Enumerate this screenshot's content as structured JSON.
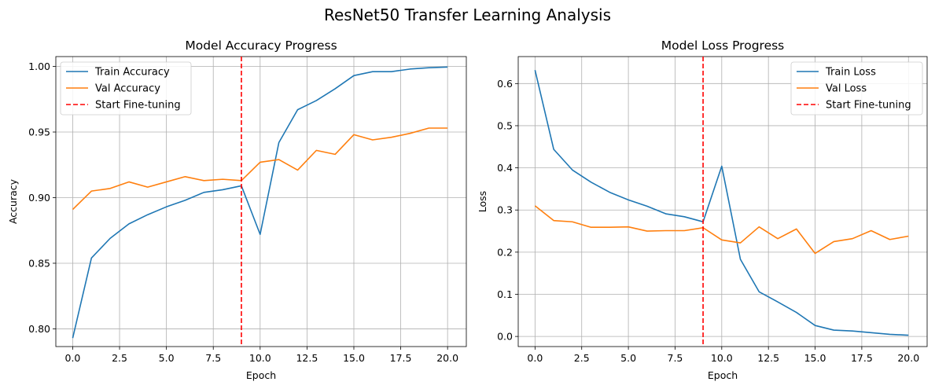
{
  "figure": {
    "title": "ResNet50 Transfer Learning Analysis"
  },
  "colors": {
    "train": "#1f77b4",
    "val": "#ff7f0e",
    "finetune": "#ff0000",
    "grid": "#b0b0b0"
  },
  "chart_data": [
    {
      "type": "line",
      "title": "Model Accuracy Progress",
      "xlabel": "Epoch",
      "ylabel": "Accuracy",
      "xlim": [
        -0.9,
        21.0
      ],
      "ylim": [
        0.7865,
        1.0075
      ],
      "xticks": [
        0.0,
        2.5,
        5.0,
        7.5,
        10.0,
        12.5,
        15.0,
        17.5,
        20.0
      ],
      "xtick_labels": [
        "0.0",
        "2.5",
        "5.0",
        "7.5",
        "10.0",
        "12.5",
        "15.0",
        "17.5",
        "20.0"
      ],
      "yticks": [
        0.8,
        0.85,
        0.9,
        0.95,
        1.0
      ],
      "ytick_labels": [
        "0.80",
        "0.85",
        "0.90",
        "0.95",
        "1.00"
      ],
      "grid": true,
      "legend_position": "top-left",
      "x": [
        0,
        1,
        2,
        3,
        4,
        5,
        6,
        7,
        8,
        9,
        10,
        11,
        12,
        13,
        14,
        15,
        16,
        17,
        18,
        19,
        20
      ],
      "series": [
        {
          "name": "Train Accuracy",
          "color_key": "train",
          "values": [
            0.793,
            0.854,
            0.869,
            0.88,
            0.887,
            0.893,
            0.898,
            0.904,
            0.906,
            0.909,
            0.872,
            0.942,
            0.967,
            0.974,
            0.983,
            0.993,
            0.996,
            0.996,
            0.998,
            0.999,
            0.9995
          ]
        },
        {
          "name": "Val Accuracy",
          "color_key": "val",
          "values": [
            0.891,
            0.905,
            0.907,
            0.912,
            0.908,
            0.912,
            0.916,
            0.913,
            0.914,
            0.913,
            0.927,
            0.929,
            0.921,
            0.936,
            0.933,
            0.948,
            0.944,
            0.946,
            0.949,
            0.953,
            0.953
          ]
        }
      ],
      "vline": {
        "name": "Start Fine-tuning",
        "x": 9,
        "color_key": "finetune",
        "style": "dashed"
      }
    },
    {
      "type": "line",
      "title": "Model Loss Progress",
      "xlabel": "Epoch",
      "ylabel": "Loss",
      "xlim": [
        -0.9,
        21.0
      ],
      "ylim": [
        -0.024,
        0.664
      ],
      "xticks": [
        0.0,
        2.5,
        5.0,
        7.5,
        10.0,
        12.5,
        15.0,
        17.5,
        20.0
      ],
      "xtick_labels": [
        "0.0",
        "2.5",
        "5.0",
        "7.5",
        "10.0",
        "12.5",
        "15.0",
        "17.5",
        "20.0"
      ],
      "yticks": [
        0.0,
        0.1,
        0.2,
        0.3,
        0.4,
        0.5,
        0.6
      ],
      "ytick_labels": [
        "0.0",
        "0.1",
        "0.2",
        "0.3",
        "0.4",
        "0.5",
        "0.6"
      ],
      "grid": true,
      "legend_position": "top-right",
      "x": [
        0,
        1,
        2,
        3,
        4,
        5,
        6,
        7,
        8,
        9,
        10,
        11,
        12,
        13,
        14,
        15,
        16,
        17,
        18,
        19,
        20
      ],
      "series": [
        {
          "name": "Train Loss",
          "color_key": "train",
          "values": [
            0.632,
            0.444,
            0.395,
            0.366,
            0.342,
            0.324,
            0.309,
            0.291,
            0.284,
            0.272,
            0.404,
            0.183,
            0.106,
            0.082,
            0.057,
            0.026,
            0.015,
            0.013,
            0.009,
            0.005,
            0.003
          ]
        },
        {
          "name": "Val Loss",
          "color_key": "val",
          "values": [
            0.31,
            0.275,
            0.272,
            0.259,
            0.259,
            0.26,
            0.25,
            0.251,
            0.251,
            0.258,
            0.229,
            0.222,
            0.26,
            0.232,
            0.255,
            0.197,
            0.225,
            0.232,
            0.251,
            0.23,
            0.238
          ]
        }
      ],
      "vline": {
        "name": "Start Fine-tuning",
        "x": 9,
        "color_key": "finetune",
        "style": "dashed"
      }
    }
  ]
}
